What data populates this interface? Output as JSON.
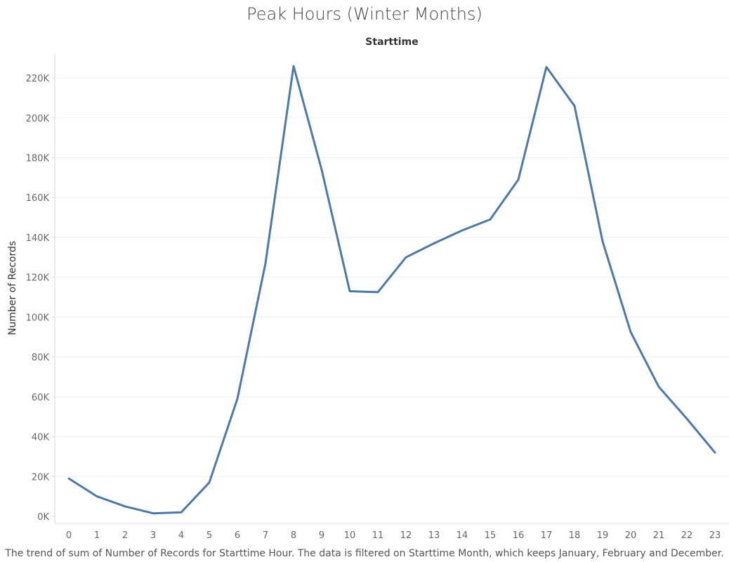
{
  "chart_data": {
    "type": "line",
    "title": "Peak Hours (Winter Months)",
    "x_header": "Starttime",
    "ylabel": "Number of Records",
    "caption": "The trend of sum of Number of Records for Starttime Hour. The data is filtered on Starttime Month, which keeps January, February and December.",
    "x": [
      0,
      1,
      2,
      3,
      4,
      5,
      6,
      7,
      8,
      9,
      10,
      11,
      12,
      13,
      14,
      15,
      16,
      17,
      18,
      19,
      20,
      21,
      22,
      23
    ],
    "x_tick_labels": [
      "0",
      "1",
      "2",
      "3",
      "4",
      "5",
      "6",
      "7",
      "8",
      "9",
      "10",
      "11",
      "12",
      "13",
      "14",
      "15",
      "16",
      "17",
      "18",
      "19",
      "20",
      "21",
      "22",
      "23"
    ],
    "series": [
      {
        "values": [
          19000,
          10000,
          5000,
          1500,
          2000,
          17000,
          59000,
          127000,
          226000,
          174000,
          113000,
          112500,
          130000,
          137000,
          143500,
          149000,
          169000,
          225500,
          206000,
          138000,
          92500,
          65000,
          49000,
          32000
        ],
        "color": "#4e79a7"
      }
    ],
    "y_ticks": [
      0,
      20000,
      40000,
      60000,
      80000,
      100000,
      120000,
      140000,
      160000,
      180000,
      200000,
      220000
    ],
    "y_tick_labels": [
      "0K",
      "20K",
      "40K",
      "60K",
      "80K",
      "100K",
      "120K",
      "140K",
      "160K",
      "180K",
      "200K",
      "220K"
    ],
    "ylim": [
      0,
      232000
    ],
    "grid": true
  }
}
